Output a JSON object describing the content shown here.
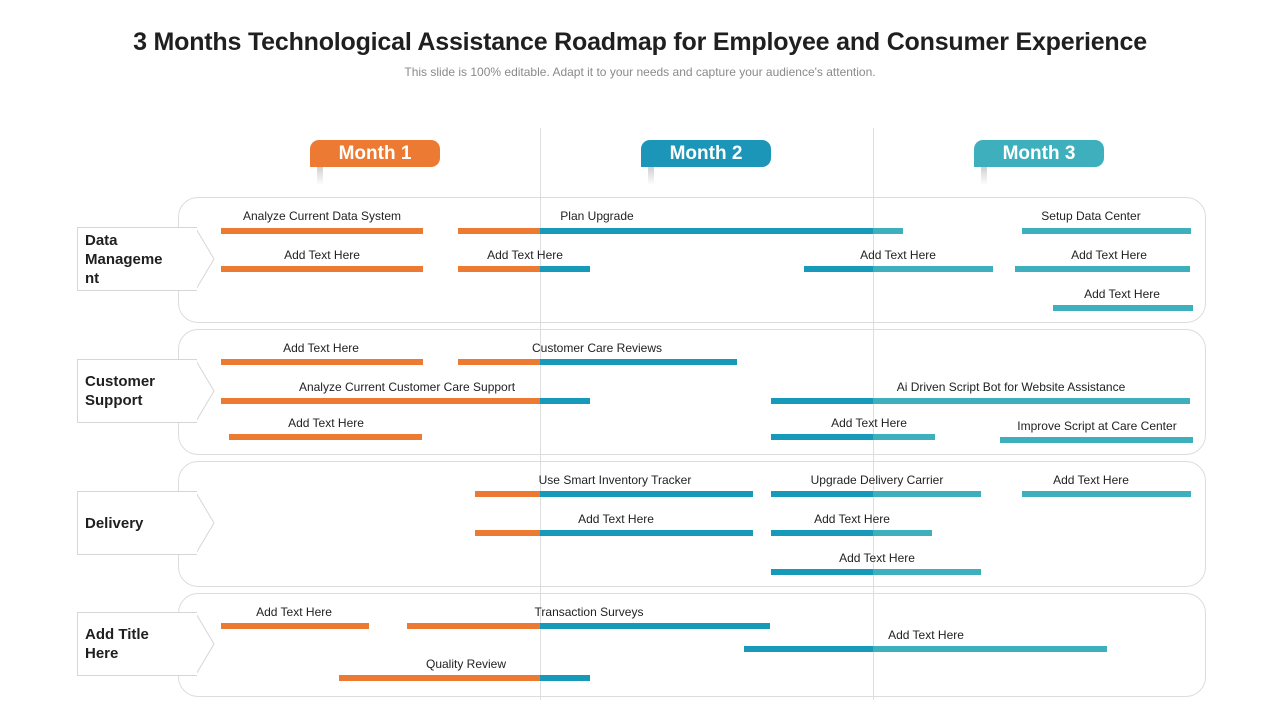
{
  "header": {
    "title": "3 Months Technological Assistance Roadmap for Employee and Consumer Experience",
    "subtitle": "This slide is 100% editable. Adapt it to your needs and capture your audience's attention."
  },
  "colors": {
    "orange": "#ec7a33",
    "blue": "#1799ba",
    "teal": "#3eb0bd",
    "month1": "#ec7a33",
    "month2": "#1b95b8",
    "month3": "#3eb0bd"
  },
  "months": [
    {
      "label": "Month 1"
    },
    {
      "label": "Month 2"
    },
    {
      "label": "Month 3"
    }
  ],
  "categories": [
    {
      "label": "Data Manageme nt"
    },
    {
      "label": "Customer Support"
    },
    {
      "label": "Delivery"
    },
    {
      "label": "Add Title Here"
    }
  ],
  "tasks": [
    {
      "label": "Analyze  Current Data System"
    },
    {
      "label": "Plan Upgrade"
    },
    {
      "label": "Setup Data Center"
    },
    {
      "label": "Add Text Here"
    },
    {
      "label": "Add Text Here"
    },
    {
      "label": "Add Text Here"
    },
    {
      "label": "Add Text Here"
    },
    {
      "label": "Add Text Here"
    },
    {
      "label": "Add Text Here"
    },
    {
      "label": "Customer Care Reviews"
    },
    {
      "label": "Analyze  Current Customer Care Support"
    },
    {
      "label": "Ai Driven Script Bot for Website Assistance"
    },
    {
      "label": "Add Text Here"
    },
    {
      "label": "Add Text Here"
    },
    {
      "label": "Improve Script at Care Center"
    },
    {
      "label": "Use Smart Inventory  Tracker"
    },
    {
      "label": "Upgrade Delivery Carrier"
    },
    {
      "label": "Add Text Here"
    },
    {
      "label": "Add Text Here"
    },
    {
      "label": "Add Text Here"
    },
    {
      "label": "Add Text Here"
    },
    {
      "label": "Add Text Here"
    },
    {
      "label": "Transaction Surveys"
    },
    {
      "label": "Add Text Here"
    },
    {
      "label": "Quality Review"
    }
  ]
}
